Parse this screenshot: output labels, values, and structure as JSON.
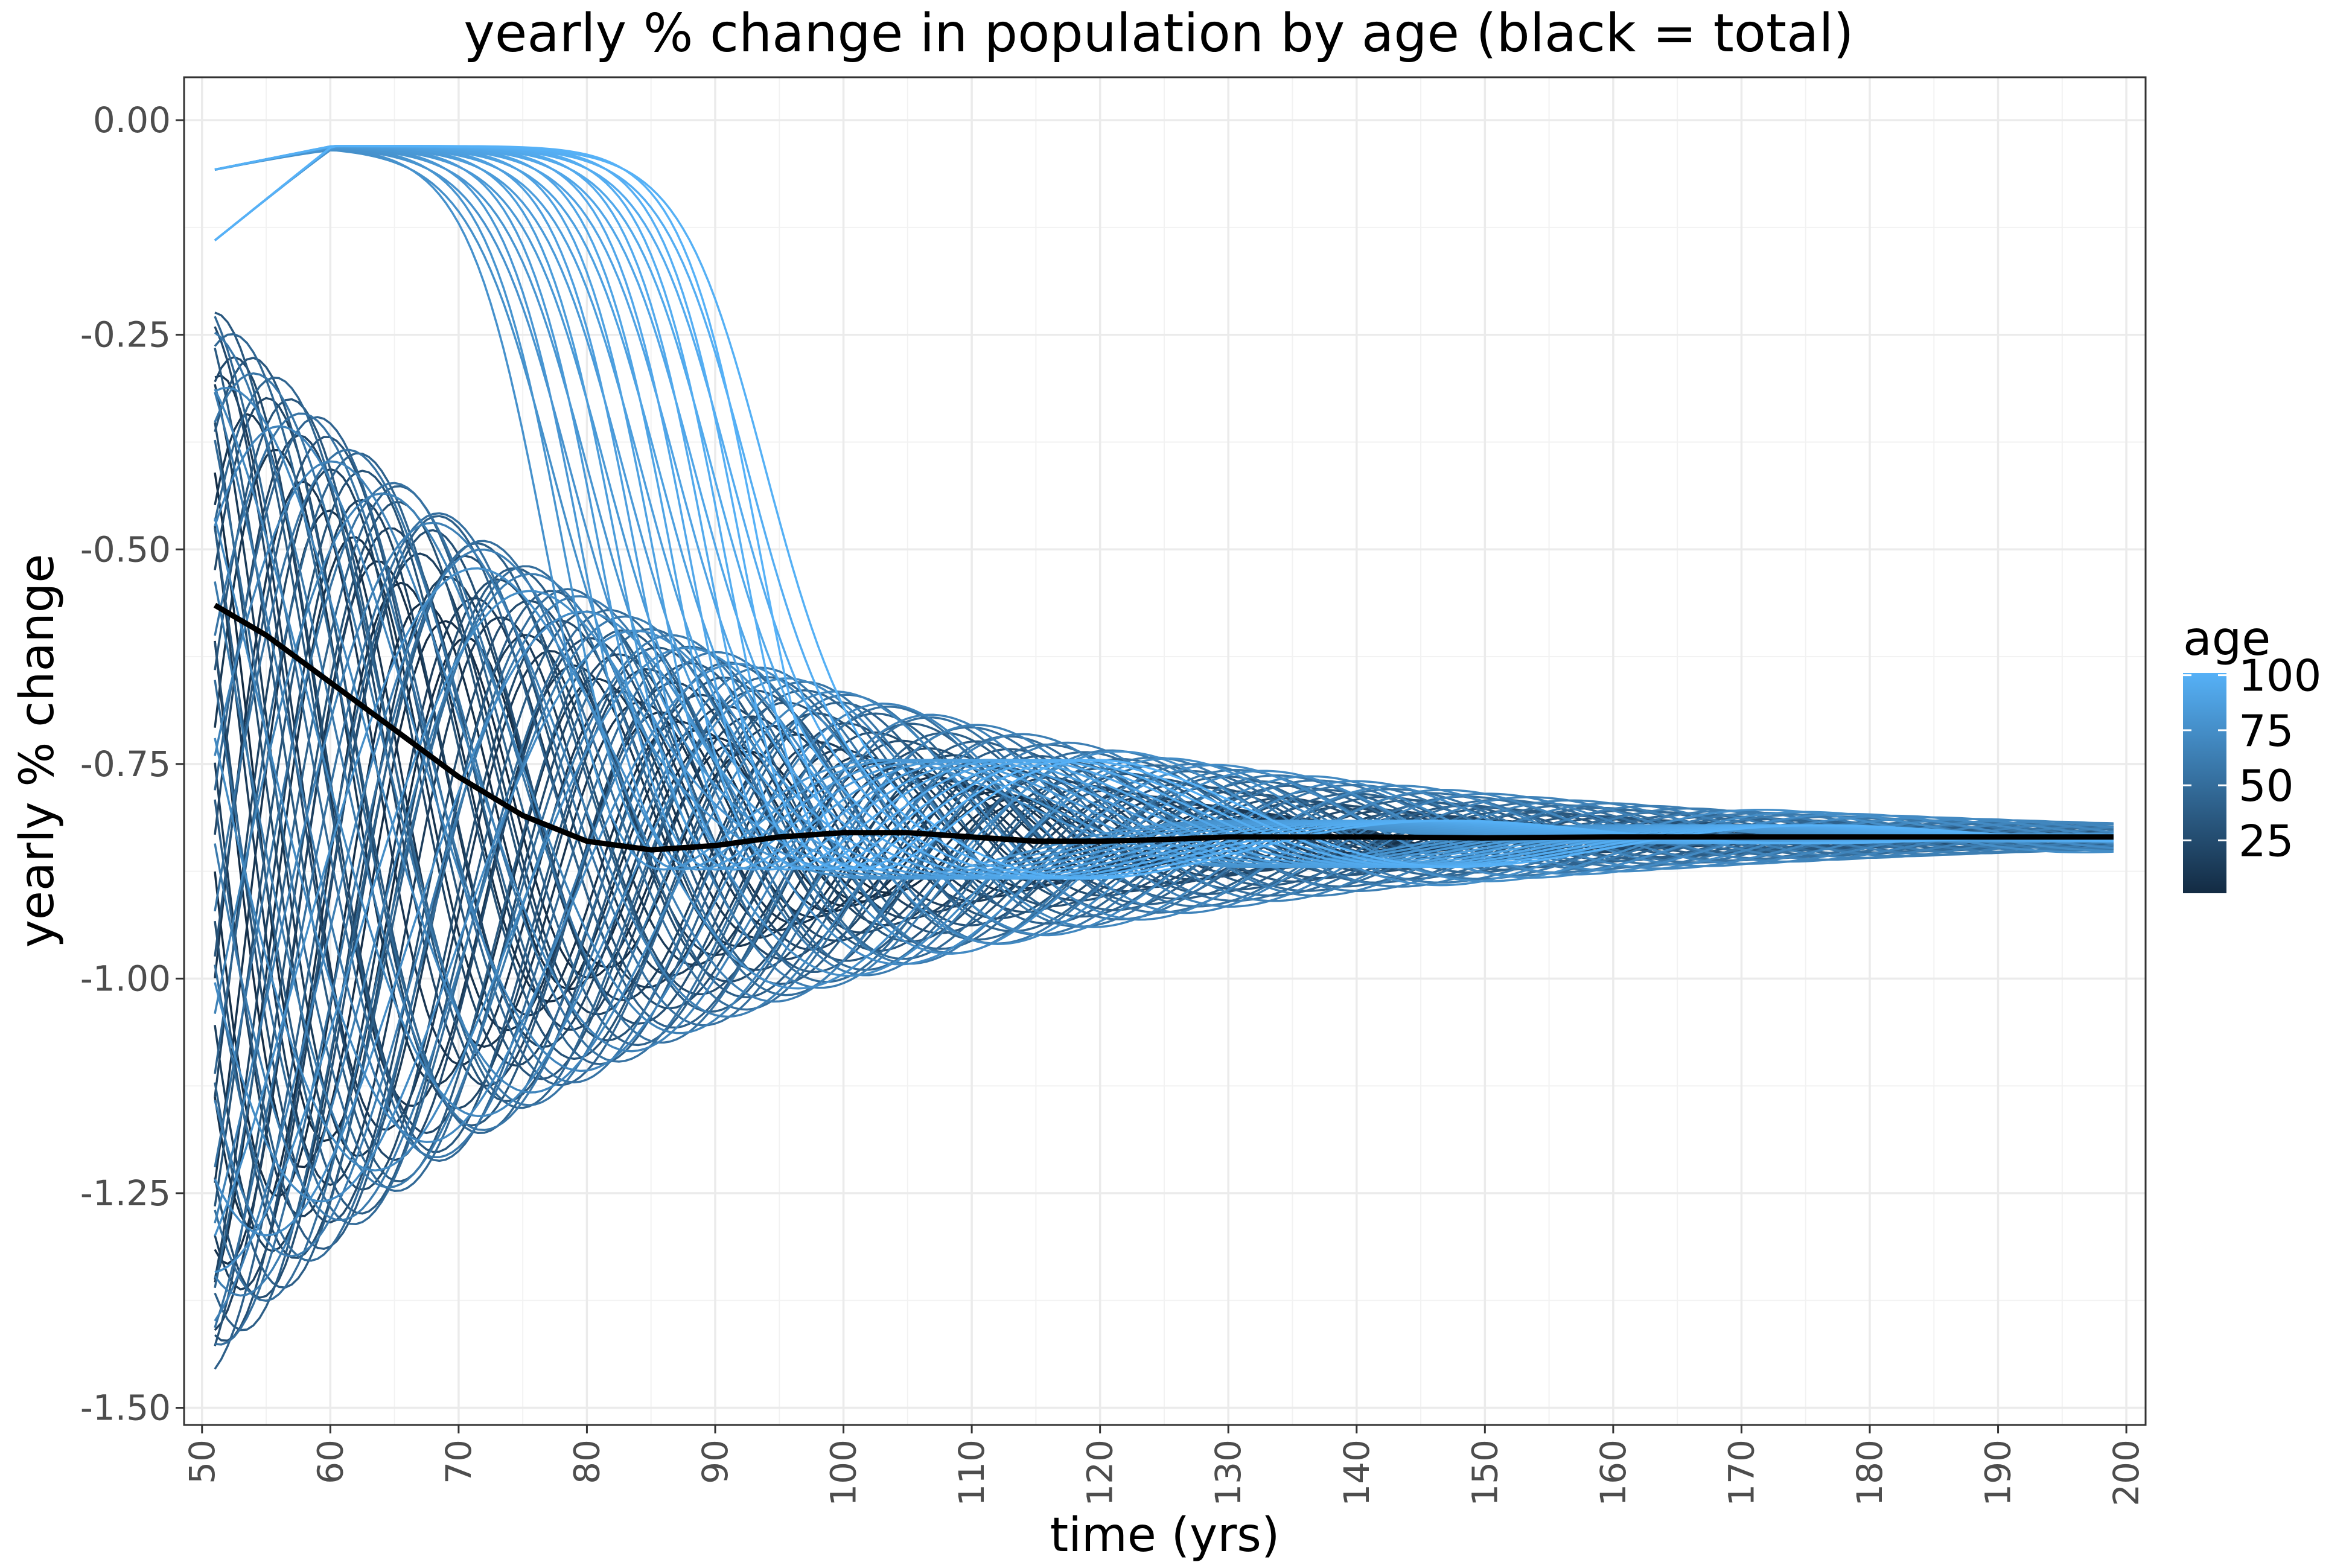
{
  "chart_data": {
    "type": "line",
    "title": "yearly % change in population by age (black = total)",
    "xlabel": "time (yrs)",
    "ylabel": "yearly % change",
    "xlim": [
      48.6,
      201.5
    ],
    "ylim": [
      -1.52,
      0.05
    ],
    "x_ticks": [
      50,
      60,
      70,
      80,
      90,
      100,
      110,
      120,
      130,
      140,
      150,
      160,
      170,
      180,
      190,
      200
    ],
    "x_tick_labels": [
      "50",
      "60",
      "70",
      "80",
      "90",
      "100",
      "110",
      "120",
      "130",
      "140",
      "150",
      "160",
      "170",
      "180",
      "190",
      "200"
    ],
    "y_ticks": [
      0,
      -0.25,
      -0.5,
      -0.75,
      -1.0,
      -1.25,
      -1.5
    ],
    "y_tick_labels": [
      "0.00",
      "-0.25",
      "-0.50",
      "-0.75",
      "-1.00",
      "-1.25",
      "-1.50"
    ],
    "grid": true,
    "legend": {
      "title": "age",
      "position": "right",
      "type": "colorbar",
      "range": [
        1,
        101
      ],
      "breaks": [
        25,
        50,
        75,
        100
      ],
      "break_labels": [
        "25",
        "50",
        "75",
        "100"
      ],
      "color_low": "#132B43",
      "color_high": "#56B1F7"
    },
    "age_series": {
      "count": 101,
      "age_range": [
        1,
        101
      ],
      "color_encodes": "age",
      "x_range": [
        51,
        199
      ],
      "converges_to": -0.835
    },
    "total_series": {
      "color": "#000000",
      "x": [
        51,
        55,
        60,
        65,
        70,
        75,
        80,
        85,
        90,
        95,
        100,
        105,
        110,
        115,
        120,
        125,
        130,
        140,
        150,
        160,
        170,
        180,
        190,
        199
      ],
      "y": [
        -0.565,
        -0.6,
        -0.655,
        -0.71,
        -0.765,
        -0.81,
        -0.84,
        -0.85,
        -0.845,
        -0.835,
        -0.83,
        -0.83,
        -0.835,
        -0.84,
        -0.84,
        -0.838,
        -0.835,
        -0.835,
        -0.836,
        -0.835,
        -0.835,
        -0.835,
        -0.835,
        -0.835
      ]
    }
  }
}
